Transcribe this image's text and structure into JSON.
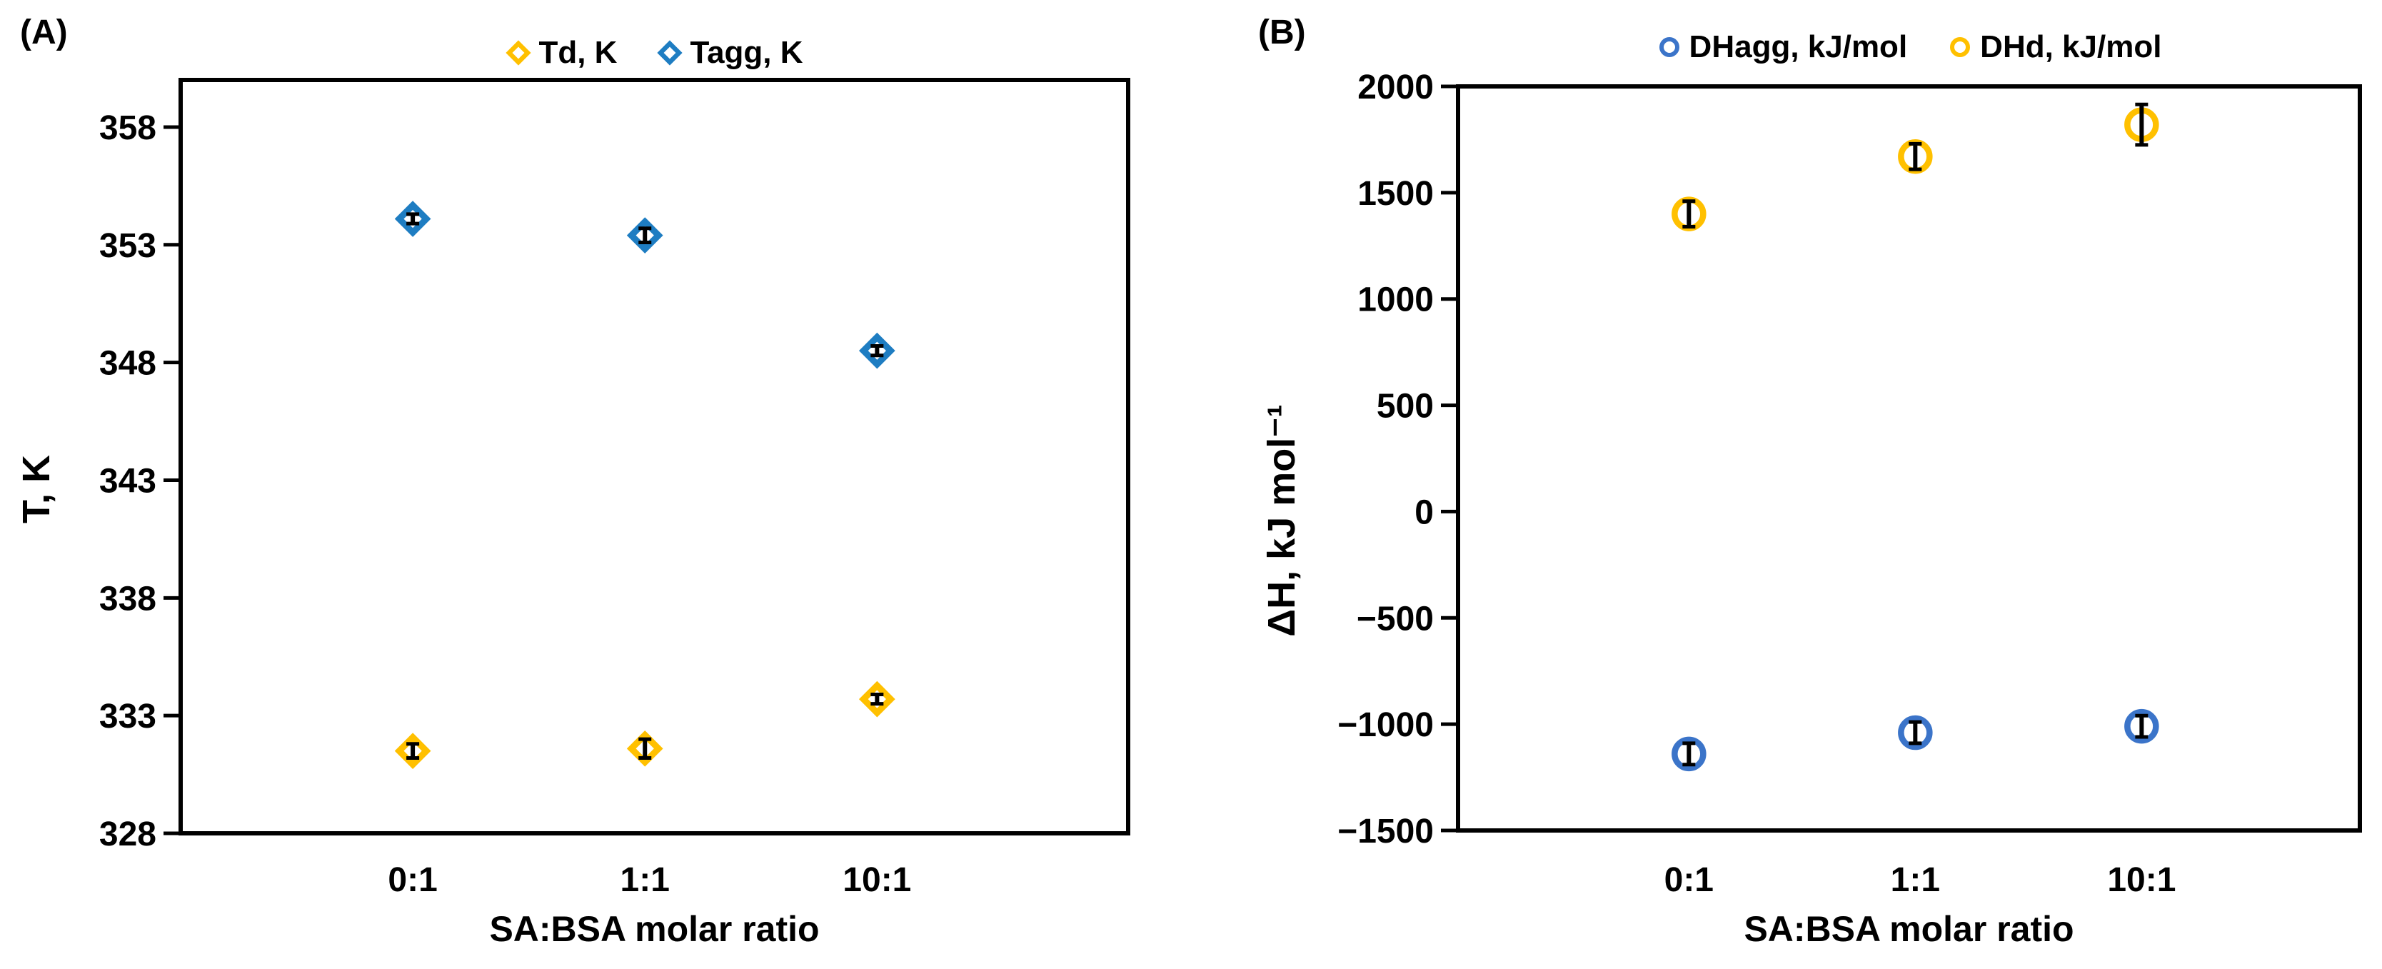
{
  "figure": {
    "panel_a_label": "(A)",
    "panel_b_label": "(B)"
  },
  "chart_data": [
    {
      "type": "scatter",
      "panel": "A",
      "title": "",
      "xlabel": "SA:BSA molar ratio",
      "ylabel": "T, K",
      "categories": [
        "0:1",
        "1:1",
        "10:1"
      ],
      "ylim": [
        328,
        360
      ],
      "yticks": [
        358,
        353,
        348,
        343,
        338,
        333,
        328
      ],
      "grid": false,
      "legend_position": "top-center",
      "series": [
        {
          "name": "Td, K",
          "marker": "diamond",
          "color": "#FFC000",
          "values": [
            331.5,
            331.6,
            333.7
          ],
          "errors": [
            0.3,
            0.4,
            0.2
          ]
        },
        {
          "name": "Tagg, K",
          "marker": "diamond",
          "color": "#1E7DC2",
          "values": [
            354.1,
            353.4,
            348.5
          ],
          "errors": [
            0.2,
            0.3,
            0.2
          ]
        }
      ]
    },
    {
      "type": "scatter",
      "panel": "B",
      "title": "",
      "xlabel": "SA:BSA molar ratio",
      "ylabel": "ΔH, kJ mol⁻¹",
      "categories": [
        "0:1",
        "1:1",
        "10:1"
      ],
      "ylim": [
        -1500,
        2000
      ],
      "yticks": [
        2000,
        1500,
        1000,
        500,
        0,
        -500,
        -1000,
        -1500
      ],
      "grid": false,
      "legend_position": "top-center",
      "series": [
        {
          "name": "DHagg, kJ/mol",
          "marker": "circle",
          "color": "#3B74C9",
          "values": [
            -1140,
            -1040,
            -1010
          ],
          "errors": [
            50,
            50,
            50
          ]
        },
        {
          "name": "DHd, kJ/mol",
          "marker": "circle",
          "color": "#FFC000",
          "values": [
            1400,
            1670,
            1820
          ],
          "errors": [
            60,
            60,
            95
          ]
        }
      ]
    }
  ]
}
